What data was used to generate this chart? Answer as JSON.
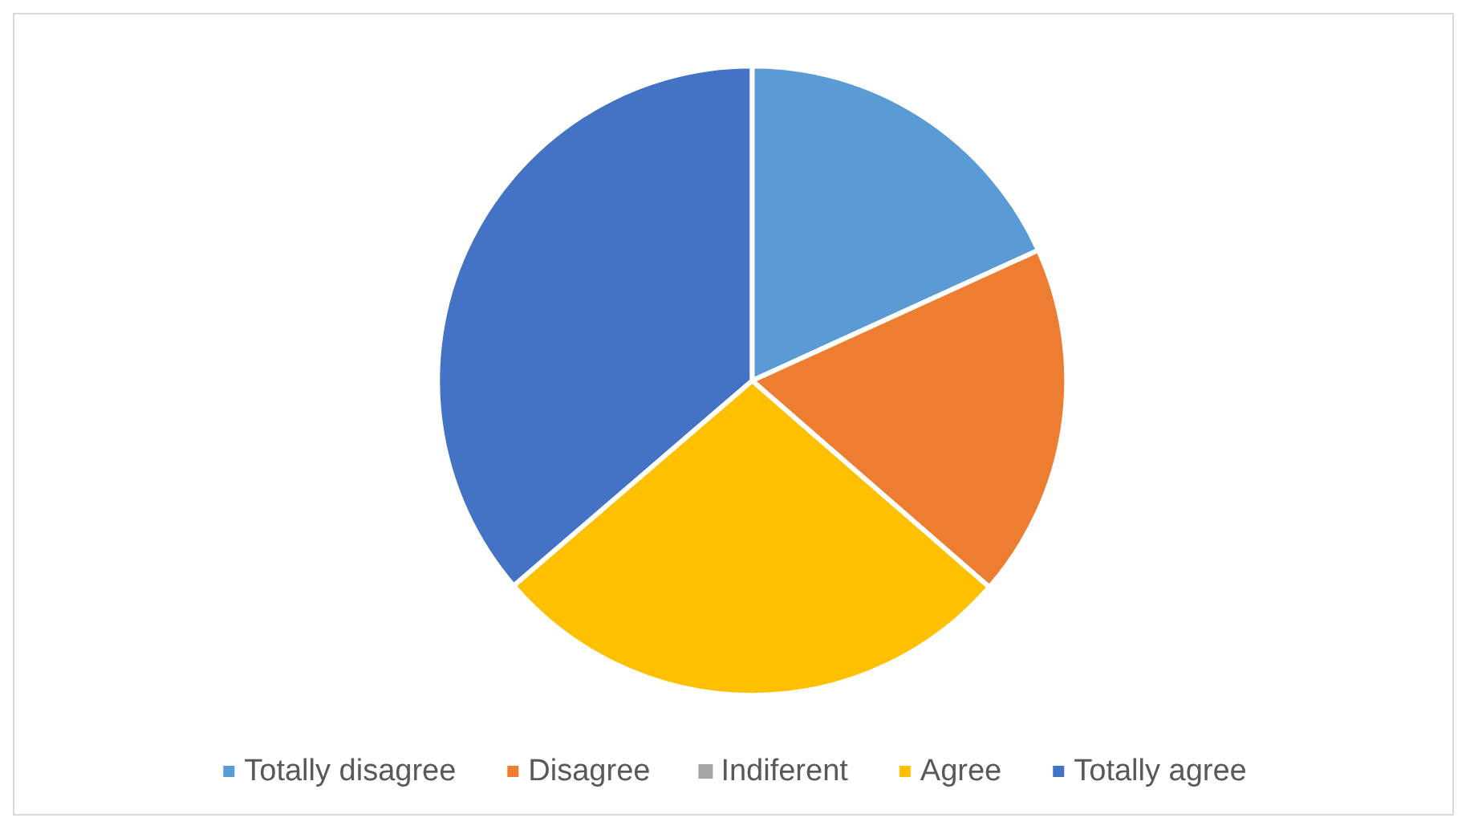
{
  "chart_data": {
    "type": "pie",
    "categories": [
      "Totally disagree",
      "Disagree",
      "Indiferent",
      "Agree",
      "Totally agree"
    ],
    "values": [
      18.2,
      18.2,
      0,
      27.3,
      36.3
    ],
    "colors": [
      "#5b9bd5",
      "#ed7d31",
      "#a5a5a5",
      "#ffc000",
      "#4472c4"
    ],
    "legend": "bottom"
  }
}
